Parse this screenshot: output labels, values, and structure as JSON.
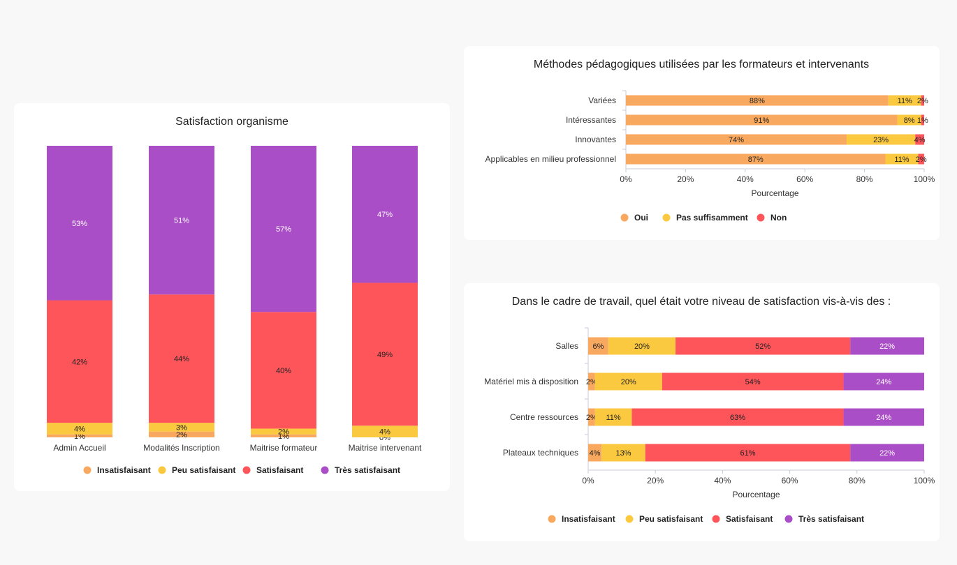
{
  "charts": {
    "satisfaction": {
      "chart_data": {
        "type": "bar",
        "orientation": "vertical",
        "stacked": true,
        "title": "Satisfaction organisme",
        "categories": [
          "Admin Accueil",
          "Modalités Inscription",
          "Maitrise formateur",
          "Maitrise intervenant"
        ],
        "series": [
          {
            "name": "Insatisfaisant",
            "color": "#f9a95f",
            "values": [
              1,
              2,
              1,
              0
            ]
          },
          {
            "name": "Peu satisfaisant",
            "color": "#fbc940",
            "values": [
              4,
              3,
              2,
              4
            ]
          },
          {
            "name": "Satisfaisant",
            "color": "#fe555b",
            "values": [
              42,
              44,
              40,
              49
            ]
          },
          {
            "name": "Très satisfaisant",
            "color": "#a94ec6",
            "values": [
              53,
              51,
              57,
              47
            ]
          }
        ],
        "labels": [
          [
            "1%",
            "2%",
            "1%",
            "0%"
          ],
          [
            "4%",
            "3%",
            "2%",
            "4%"
          ],
          [
            "42%",
            "44%",
            "40%",
            "49%"
          ],
          [
            "53%",
            "51%",
            "57%",
            "47%"
          ]
        ],
        "legend_position": "bottom"
      }
    },
    "methodes": {
      "chart_data": {
        "type": "bar",
        "orientation": "horizontal",
        "stacked": true,
        "title": "Méthodes pédagogiques utilisées par les formateurs et intervenants",
        "categories": [
          "Variées",
          "Intéressantes",
          "Innovantes",
          "Applicables en milieu professionnel"
        ],
        "series": [
          {
            "name": "Oui",
            "color": "#f9a95f",
            "values": [
              88,
              91,
              74,
              87
            ]
          },
          {
            "name": "Pas suffisamment",
            "color": "#fbc940",
            "values": [
              11,
              8,
              23,
              11
            ]
          },
          {
            "name": "Non",
            "color": "#fe555b",
            "values": [
              2,
              1,
              4,
              2
            ]
          }
        ],
        "xlabel": "Pourcentage",
        "xlim": [
          0,
          100
        ],
        "xticks": [
          "0%",
          "20%",
          "40%",
          "60%",
          "80%",
          "100%"
        ],
        "grid": false,
        "legend_position": "bottom"
      }
    },
    "cadre": {
      "chart_data": {
        "type": "bar",
        "orientation": "horizontal",
        "stacked": true,
        "title": "Dans le cadre de travail, quel était votre niveau de satisfaction vis-à-vis des :",
        "categories": [
          "Salles",
          "Matériel mis à disposition",
          "Centre ressources",
          "Plateaux techniques"
        ],
        "series": [
          {
            "name": "Insatisfaisant",
            "color": "#f9a95f",
            "values": [
              6,
              2,
              2,
              4
            ]
          },
          {
            "name": "Peu satisfaisant",
            "color": "#fbc940",
            "values": [
              20,
              20,
              11,
              13
            ]
          },
          {
            "name": "Satisfaisant",
            "color": "#fe555b",
            "values": [
              52,
              54,
              63,
              61
            ]
          },
          {
            "name": "Très satisfaisant",
            "color": "#a94ec6",
            "values": [
              22,
              24,
              24,
              22
            ]
          }
        ],
        "xlabel": "Pourcentage",
        "xlim": [
          0,
          100
        ],
        "xticks": [
          "0%",
          "20%",
          "40%",
          "60%",
          "80%",
          "100%"
        ],
        "grid": false,
        "legend_position": "bottom"
      }
    }
  }
}
